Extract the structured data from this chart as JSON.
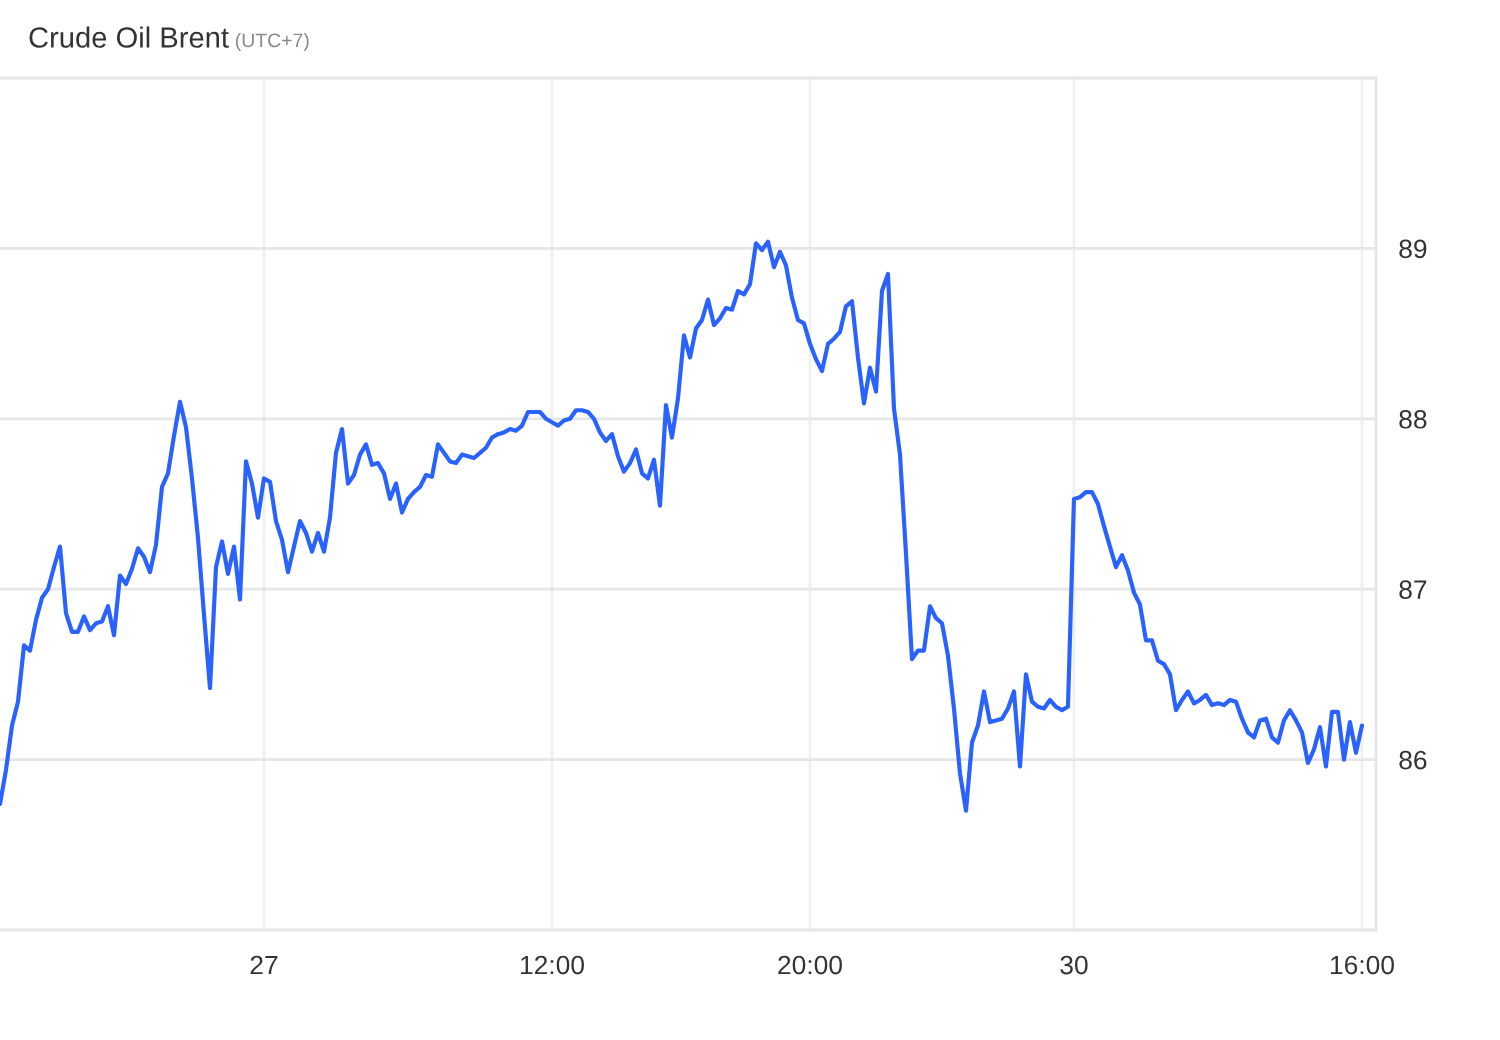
{
  "chart_data": {
    "type": "line",
    "title": "Crude Oil Brent",
    "subtitle": "(UTC+7)",
    "categories": [
      null,
      null,
      null,
      null,
      null,
      null,
      null,
      null,
      null,
      null,
      null,
      null,
      null,
      null,
      null,
      null,
      null,
      null,
      null,
      null,
      null,
      null,
      null,
      null,
      null,
      null,
      null,
      null,
      null,
      null,
      null,
      null,
      null,
      null,
      null,
      null,
      null,
      null,
      null,
      null,
      null,
      null,
      null,
      null,
      "27",
      null,
      null,
      null,
      null,
      null,
      null,
      null,
      null,
      null,
      null,
      null,
      null,
      null,
      null,
      null,
      null,
      null,
      null,
      null,
      null,
      null,
      null,
      null,
      null,
      null,
      null,
      null,
      null,
      null,
      null,
      null,
      null,
      null,
      null,
      null,
      null,
      null,
      null,
      null,
      null,
      null,
      null,
      null,
      null,
      null,
      null,
      null,
      "12:00",
      null,
      null,
      null,
      null,
      null,
      null,
      null,
      null,
      null,
      null,
      null,
      null,
      null,
      null,
      null,
      null,
      null,
      null,
      null,
      null,
      null,
      null,
      null,
      null,
      null,
      null,
      null,
      null,
      null,
      null,
      null,
      null,
      null,
      null,
      null,
      null,
      null,
      null,
      null,
      null,
      null,
      null,
      "20:00",
      null,
      null,
      null,
      null,
      null,
      null,
      null,
      null,
      null,
      null,
      null,
      null,
      null,
      null,
      null,
      null,
      null,
      null,
      null,
      null,
      null,
      null,
      null,
      null,
      null,
      null,
      null,
      null,
      null,
      null,
      null,
      null,
      null,
      null,
      null,
      null,
      null,
      null,
      null,
      null,
      null,
      null,
      null,
      "30",
      null,
      null,
      null,
      null,
      null,
      null,
      null,
      null,
      null,
      null,
      null,
      null,
      null,
      null,
      null,
      null,
      null,
      null,
      null,
      null,
      null,
      null,
      null,
      null,
      null,
      null,
      null,
      null,
      null,
      null,
      null,
      null,
      null,
      null,
      null,
      null,
      null,
      null,
      null,
      null,
      null,
      null,
      null,
      null,
      null,
      null,
      null,
      "16:00"
    ],
    "series": [
      {
        "color": "#2962ff",
        "values": [
          85.74,
          85.94,
          86.2,
          86.34,
          86.67,
          86.64,
          86.82,
          86.95,
          87.0,
          87.13,
          87.25,
          86.86,
          86.75,
          86.75,
          86.84,
          86.76,
          86.8,
          86.81,
          86.9,
          86.73,
          87.08,
          87.03,
          87.12,
          87.24,
          87.19,
          87.1,
          87.26,
          87.6,
          87.68,
          87.9,
          88.1,
          87.95,
          87.65,
          87.3,
          86.85,
          86.42,
          87.13,
          87.28,
          87.09,
          87.25,
          86.94,
          87.75,
          87.62,
          87.42,
          87.65,
          87.63,
          87.4,
          87.29,
          87.1,
          87.25,
          87.4,
          87.33,
          87.22,
          87.33,
          87.22,
          87.42,
          87.8,
          87.94,
          87.62,
          87.67,
          87.79,
          87.85,
          87.73,
          87.74,
          87.68,
          87.53,
          87.62,
          87.45,
          87.53,
          87.57,
          87.6,
          87.67,
          87.66,
          87.85,
          87.8,
          87.75,
          87.74,
          87.79,
          87.78,
          87.77,
          87.8,
          87.83,
          87.89,
          87.91,
          87.92,
          87.94,
          87.93,
          87.96,
          88.04,
          88.04,
          88.04,
          88.0,
          87.98,
          87.96,
          87.99,
          88.0,
          88.05,
          88.05,
          88.04,
          88.0,
          87.92,
          87.87,
          87.91,
          87.78,
          87.69,
          87.74,
          87.82,
          87.68,
          87.65,
          87.76,
          87.49,
          88.08,
          87.89,
          88.12,
          88.49,
          88.36,
          88.53,
          88.58,
          88.7,
          88.55,
          88.59,
          88.65,
          88.64,
          88.75,
          88.73,
          88.79,
          89.03,
          88.99,
          89.04,
          88.89,
          88.98,
          88.9,
          88.71,
          88.58,
          88.56,
          88.44,
          88.35,
          88.28,
          88.44,
          88.47,
          88.51,
          88.66,
          88.69,
          88.36,
          88.09,
          88.3,
          88.16,
          88.75,
          88.85,
          88.06,
          87.79,
          87.21,
          86.59,
          86.64,
          86.64,
          86.9,
          86.83,
          86.8,
          86.61,
          86.3,
          85.92,
          85.7,
          86.1,
          86.2,
          86.4,
          86.22,
          86.23,
          86.24,
          86.3,
          86.4,
          85.96,
          86.5,
          86.34,
          86.31,
          86.3,
          86.35,
          86.31,
          86.29,
          86.31,
          87.53,
          87.54,
          87.57,
          87.57,
          87.5,
          87.37,
          87.25,
          87.13,
          87.2,
          87.11,
          86.98,
          86.91,
          86.7,
          86.7,
          86.58,
          86.56,
          86.5,
          86.29,
          86.35,
          86.4,
          86.33,
          86.35,
          86.38,
          86.32,
          86.33,
          86.32,
          86.35,
          86.34,
          86.24,
          86.16,
          86.13,
          86.23,
          86.24,
          86.13,
          86.1,
          86.23,
          86.29,
          86.23,
          86.16,
          85.98,
          86.06,
          86.19,
          85.96,
          86.28,
          86.28,
          86.0,
          86.22,
          86.04,
          86.2
        ]
      }
    ],
    "ylim": [
      85,
      90
    ],
    "yticks": [
      86,
      87,
      88,
      89
    ],
    "grid": true
  }
}
